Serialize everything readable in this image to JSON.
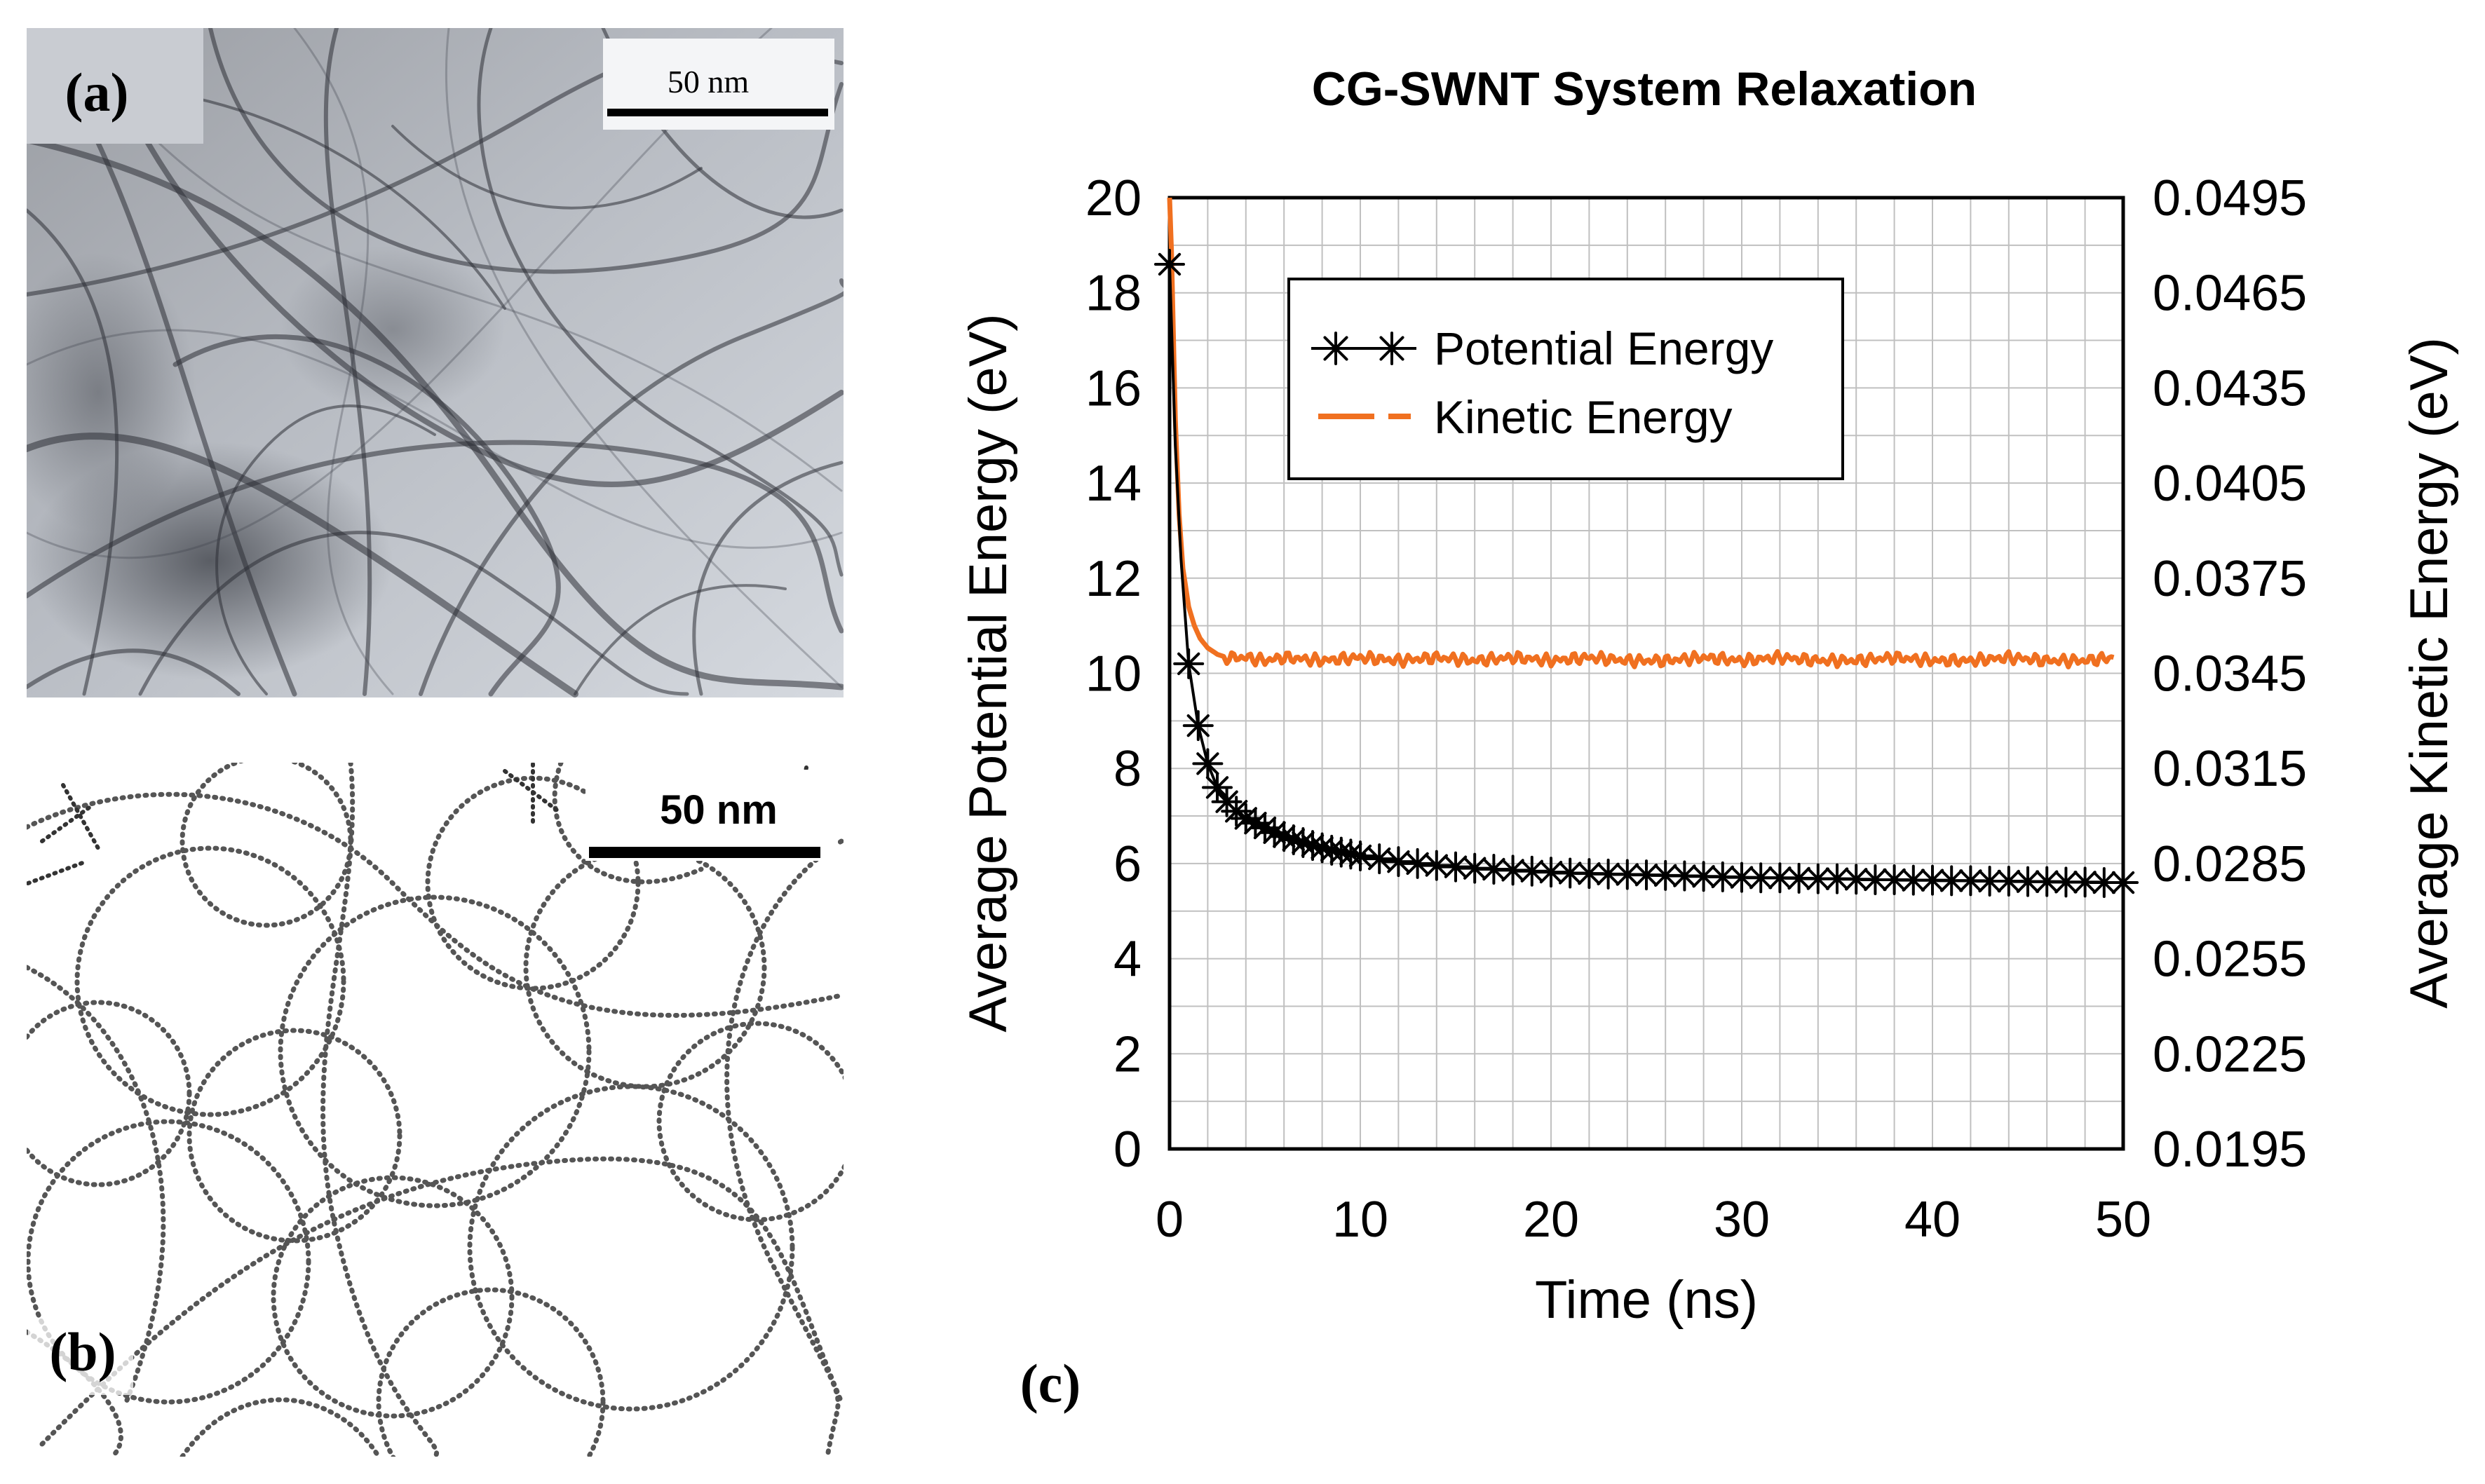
{
  "panel_a": {
    "label": "(a)",
    "scale_bar_label": "50 nm",
    "description": "TEM micrograph of single-walled carbon nanotube network"
  },
  "panel_b": {
    "label": "(b)",
    "scale_bar_label": "50 nm",
    "description": "Coarse-grained bead model of nanotube network"
  },
  "panel_c": {
    "label": "(c)"
  },
  "colors": {
    "potential": "#000000",
    "kinetic": "#f07020",
    "grid": "#c0c0c0",
    "frame": "#000000"
  },
  "chart_data": {
    "type": "line",
    "title": "CG-SWNT System Relaxation",
    "xlabel": "Time (ns)",
    "ylabel": "Average Potential Energy (eV)",
    "y2label": "Average Kinetic Energy (eV)",
    "xlim": [
      0,
      50
    ],
    "ylim": [
      0,
      20
    ],
    "y2lim": [
      0.0195,
      0.0495
    ],
    "x_ticks": [
      "0",
      "10",
      "20",
      "30",
      "40",
      "50"
    ],
    "y_ticks": [
      "0",
      "2",
      "4",
      "6",
      "8",
      "10",
      "12",
      "14",
      "16",
      "18",
      "20"
    ],
    "y2_ticks": [
      "0.0195",
      "0.0225",
      "0.0255",
      "0.0285",
      "0.0315",
      "0.0345",
      "0.0375",
      "0.0405",
      "0.0435",
      "0.0465",
      "0.0495"
    ],
    "grid": true,
    "legend_position": "upper-center",
    "series": [
      {
        "name": "Potential Energy",
        "axis": "left",
        "marker": "asterisk",
        "x": [
          0.0,
          0.3,
          0.6,
          1.0,
          1.5,
          2.0,
          2.5,
          3.0,
          3.5,
          4.0,
          4.5,
          5.0,
          5.5,
          6.0,
          6.5,
          7.0,
          7.5,
          8.0,
          8.5,
          9.0,
          9.5,
          10,
          11,
          12,
          13,
          14,
          15,
          16,
          17,
          18,
          19,
          20,
          21,
          22,
          23,
          24,
          25,
          26,
          27,
          28,
          29,
          30,
          31,
          32,
          33,
          34,
          35,
          36,
          37,
          38,
          39,
          40,
          41,
          42,
          43,
          44,
          45,
          46,
          47,
          48,
          49,
          50
        ],
        "values": [
          18.6,
          14.8,
          12.4,
          10.2,
          8.9,
          8.1,
          7.6,
          7.3,
          7.1,
          6.95,
          6.85,
          6.75,
          6.65,
          6.57,
          6.5,
          6.44,
          6.38,
          6.33,
          6.28,
          6.24,
          6.2,
          6.16,
          6.1,
          6.04,
          6.0,
          5.96,
          5.93,
          5.9,
          5.88,
          5.86,
          5.84,
          5.82,
          5.8,
          5.79,
          5.78,
          5.77,
          5.76,
          5.75,
          5.74,
          5.73,
          5.72,
          5.71,
          5.7,
          5.7,
          5.69,
          5.68,
          5.68,
          5.67,
          5.66,
          5.66,
          5.65,
          5.65,
          5.64,
          5.64,
          5.63,
          5.63,
          5.62,
          5.62,
          5.61,
          5.61,
          5.6,
          5.6
        ]
      },
      {
        "name": "Kinetic Energy",
        "axis": "right",
        "marker": "none",
        "x": [
          0.0,
          0.1,
          0.2,
          0.3,
          0.5,
          0.7,
          1.0,
          1.3,
          1.6,
          2.0,
          2.5,
          3.0,
          4.0,
          5.0,
          6.0,
          8.0,
          10,
          12,
          14,
          16,
          18,
          20,
          22,
          24,
          26,
          28,
          30,
          32,
          34,
          36,
          38,
          40,
          42,
          44,
          46,
          48,
          49.5
        ],
        "values": [
          0.0495,
          0.0478,
          0.0452,
          0.0425,
          0.0395,
          0.0378,
          0.0366,
          0.036,
          0.0356,
          0.0353,
          0.0351,
          0.035,
          0.035,
          0.0349,
          0.035,
          0.0349,
          0.035,
          0.0349,
          0.035,
          0.0349,
          0.035,
          0.0349,
          0.035,
          0.0349,
          0.0349,
          0.035,
          0.0349,
          0.035,
          0.0349,
          0.0349,
          0.035,
          0.0349,
          0.0349,
          0.035,
          0.0349,
          0.0349,
          0.035
        ]
      }
    ]
  }
}
